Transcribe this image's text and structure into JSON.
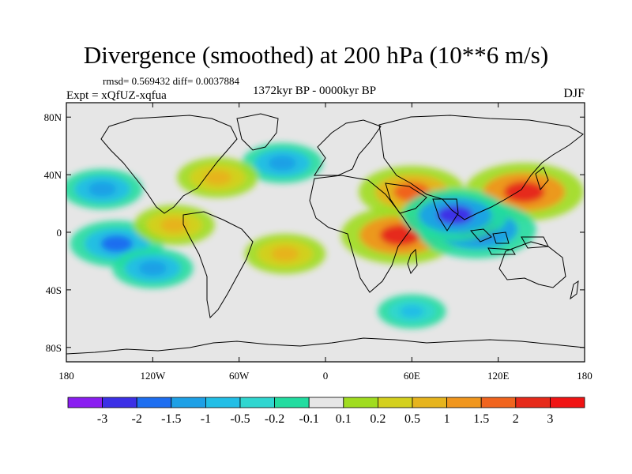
{
  "header": {
    "title": "Divergence (smoothed) at 200 hPa (10**6 m/s)",
    "rmsd_text": "rmsd= 0.569432 diff= 0.0037884",
    "expt_text": "Expt = xQfUZ-xqfua",
    "period_text": "1372kyr BP - 0000kyr BP",
    "season_text": "DJF"
  },
  "chart_data": {
    "type": "heatmap",
    "title": "Divergence (smoothed) at 200 hPa (10**6 m/s)",
    "projection": "cylindrical equidistant",
    "x_ticks": [
      "180",
      "120W",
      "60W",
      "0",
      "60E",
      "120E",
      "180"
    ],
    "x_tick_values": [
      -180,
      -120,
      -60,
      0,
      60,
      120,
      180
    ],
    "y_ticks": [
      "80N",
      "40N",
      "0",
      "40S",
      "80S"
    ],
    "y_tick_values": [
      80,
      40,
      0,
      -40,
      -80
    ],
    "xlim": [
      -180,
      180
    ],
    "ylim": [
      -90,
      90
    ],
    "colorbar": {
      "levels": [
        "-3",
        "-2",
        "-1.5",
        "-1",
        "-0.5",
        "-0.2",
        "-0.1",
        "0.1",
        "0.2",
        "0.5",
        "1",
        "1.5",
        "2",
        "3"
      ],
      "colors": [
        "#8a1ef0",
        "#3c30e6",
        "#1e6ef0",
        "#1ea0e6",
        "#22bee6",
        "#30d6d0",
        "#22dca0",
        "#e6e6e6",
        "#a0dc20",
        "#d4d01e",
        "#e6b41e",
        "#f0961e",
        "#f0641e",
        "#e62a1a",
        "#f01414"
      ]
    },
    "features": [
      {
        "region": "southern Indian Ocean / East Africa",
        "lon": 52,
        "lat": -2,
        "value": 2.5,
        "sign": "positive"
      },
      {
        "region": "Arabia / Middle East",
        "lon": 60,
        "lat": 28,
        "value": 2,
        "sign": "positive"
      },
      {
        "region": "East Asia / West Pacific",
        "lon": 138,
        "lat": 28,
        "value": 2.5,
        "sign": "positive"
      },
      {
        "region": "Indonesia / Maritime Continent",
        "lon": 105,
        "lat": 2,
        "value": -2.5,
        "sign": "negative"
      },
      {
        "region": "Bay of Bengal / Southeast Asia",
        "lon": 90,
        "lat": 12,
        "value": -2,
        "sign": "negative"
      },
      {
        "region": "North Pacific",
        "lon": -155,
        "lat": 30,
        "value": -1,
        "sign": "negative"
      },
      {
        "region": "Central tropical Pacific",
        "lon": -145,
        "lat": -8,
        "value": -1.5,
        "sign": "negative"
      },
      {
        "region": "North Atlantic",
        "lon": -30,
        "lat": 48,
        "value": -1,
        "sign": "negative"
      },
      {
        "region": "South Pacific",
        "lon": -120,
        "lat": -25,
        "value": -1,
        "sign": "negative"
      },
      {
        "region": "Eastern North America",
        "lon": -75,
        "lat": 38,
        "value": 1,
        "sign": "positive"
      },
      {
        "region": "Eastern tropical Pacific",
        "lon": -105,
        "lat": 5,
        "value": 1,
        "sign": "positive"
      },
      {
        "region": "South Atlantic",
        "lon": -28,
        "lat": -15,
        "value": 1,
        "sign": "positive"
      },
      {
        "region": "Southern Ocean",
        "lon": 60,
        "lat": -55,
        "value": -0.5,
        "sign": "negative"
      }
    ]
  }
}
